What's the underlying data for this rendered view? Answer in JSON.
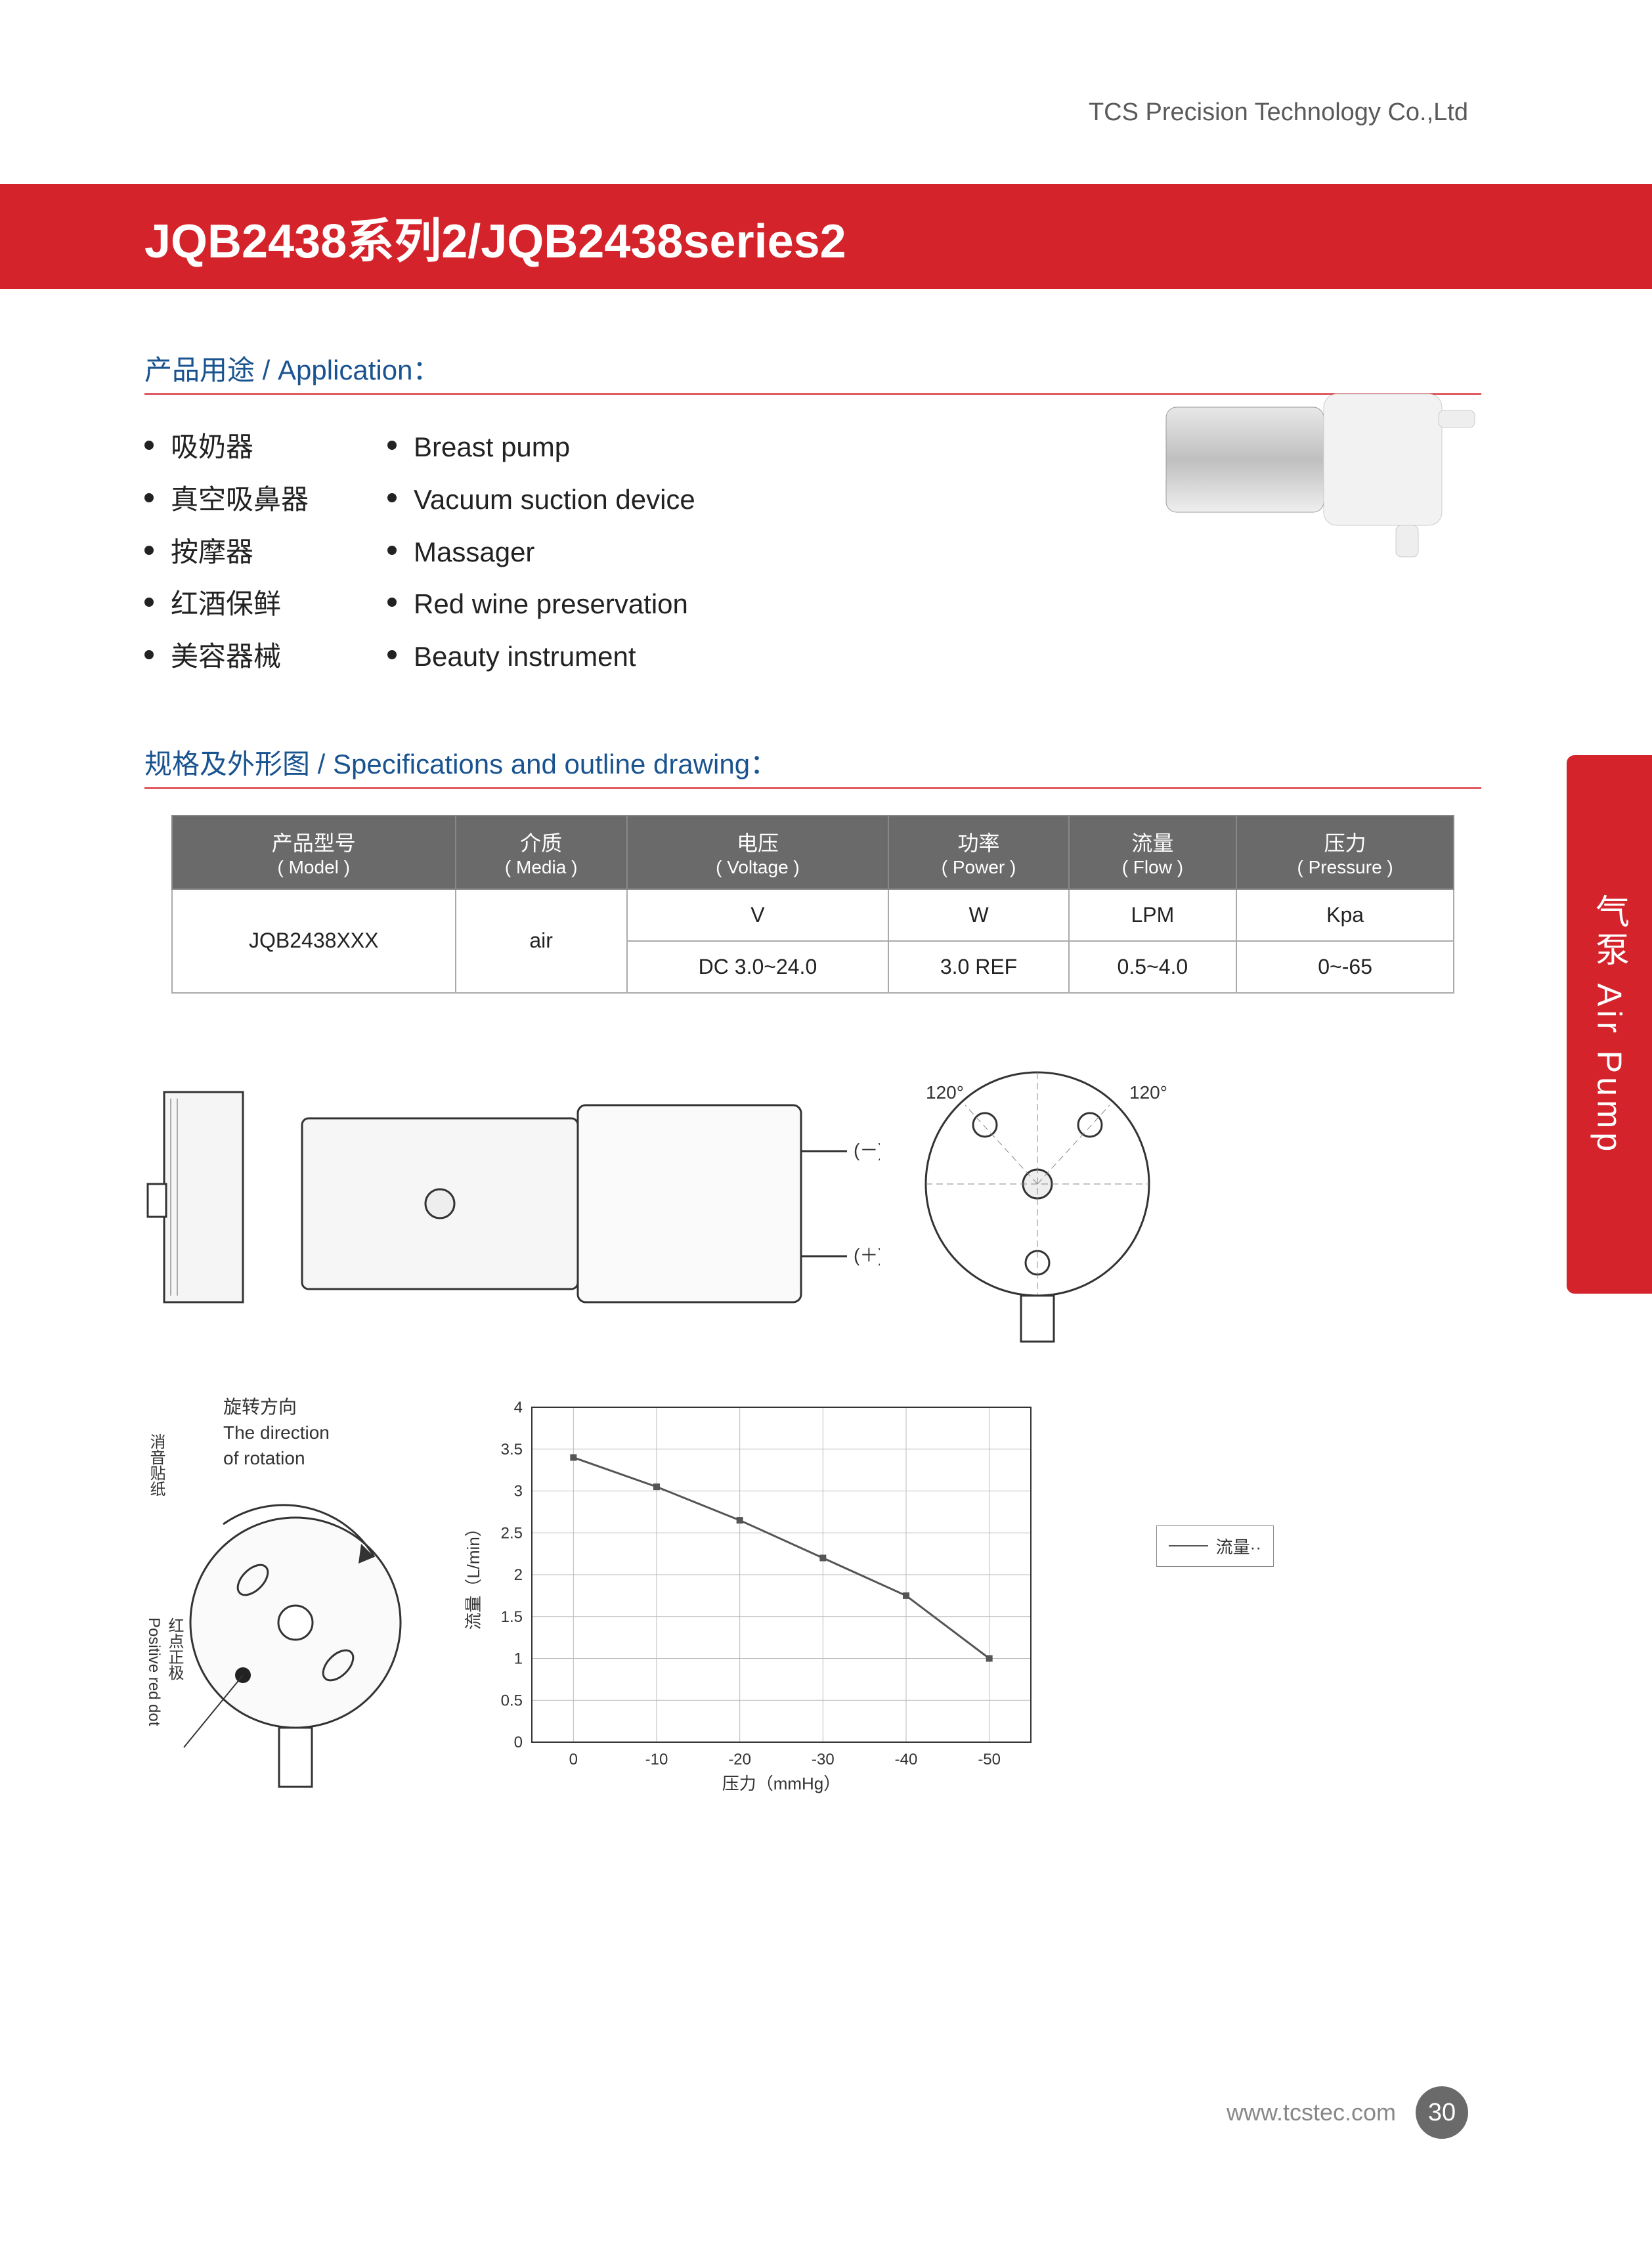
{
  "company": "TCS Precision Technology Co.,Ltd",
  "page_title": "JQB2438系列2/JQB2438series2",
  "side_tab": "气泵 Air Pump",
  "section_app_title": "产品用途 / Application：",
  "applications_cn": [
    "吸奶器",
    "真空吸鼻器",
    "按摩器",
    "红酒保鲜",
    "美容器械"
  ],
  "applications_en": [
    "Breast pump",
    "Vacuum suction device",
    "Massager",
    "Red wine preservation",
    "Beauty instrument"
  ],
  "section_spec_title": "规格及外形图 / Specifications and outline drawing：",
  "spec_table": {
    "headers": [
      {
        "cn": "产品型号",
        "en": "( Model )"
      },
      {
        "cn": "介质",
        "en": "( Media )"
      },
      {
        "cn": "电压",
        "en": "( Voltage )"
      },
      {
        "cn": "功率",
        "en": "( Power )"
      },
      {
        "cn": "流量",
        "en": "( Flow )"
      },
      {
        "cn": "压力",
        "en": "( Pressure )"
      }
    ],
    "model": "JQB2438XXX",
    "media": "air",
    "units": [
      "V",
      "W",
      "LPM",
      "Kpa"
    ],
    "values": [
      "DC 3.0~24.0",
      "3.0 REF",
      "0.5~4.0",
      "0~-65"
    ]
  },
  "drawing_annotations": {
    "angle_left": "120°",
    "angle_right": "120°",
    "terminal_minus": "(－)",
    "terminal_plus": "(＋)",
    "rotation_cn": "旋转方向",
    "rotation_en1": "The direction",
    "rotation_en2": "of rotation",
    "mute_sticker": "消音贴纸",
    "red_dot_cn": "红点正极",
    "red_dot_en": "Positive red dot"
  },
  "chart": {
    "type": "line",
    "ylabel": "流量（L/min）",
    "xlabel": "压力（mmHg）",
    "x_ticks": [
      "0",
      "-10",
      "-20",
      "-30",
      "-40",
      "-50"
    ],
    "y_ticks": [
      "0",
      "0.5",
      "1",
      "1.5",
      "2",
      "2.5",
      "3",
      "3.5",
      "4"
    ],
    "legend": "流量··",
    "series": [
      {
        "x": 0,
        "y": 3.4
      },
      {
        "x": -10,
        "y": 3.05
      },
      {
        "x": -20,
        "y": 2.65
      },
      {
        "x": -30,
        "y": 2.2
      },
      {
        "x": -40,
        "y": 1.75
      },
      {
        "x": -50,
        "y": 1.0
      }
    ],
    "line_color": "#555555",
    "grid_color": "#bbbbbb",
    "background_color": "#ffffff",
    "title_fontsize": 26,
    "xlim": [
      5,
      -55
    ],
    "ylim": [
      0,
      4
    ]
  },
  "footer_url": "www.tcstec.com",
  "page_number": "30",
  "colors": {
    "brand_red": "#d4232a",
    "heading_blue": "#1a5490",
    "table_header_bg": "#6a6a6a",
    "text": "#222222",
    "muted": "#888888"
  }
}
